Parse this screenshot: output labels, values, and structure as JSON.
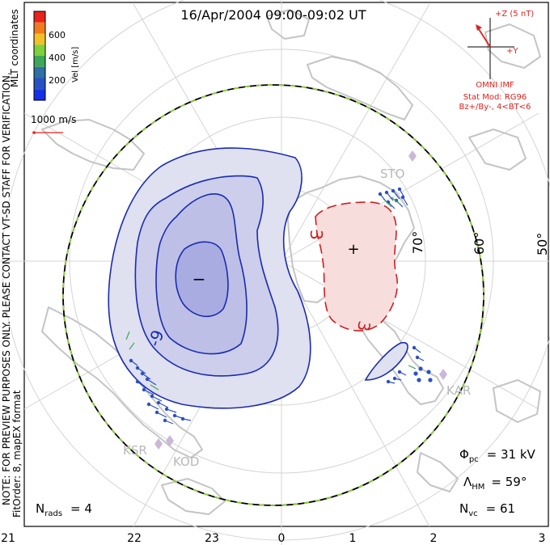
{
  "title": "16/Apr/2004 09:00-09:02 UT",
  "coordinates_label": "MLT coordinates",
  "colorbar": {
    "label": "Vel [m/s]",
    "ticks": [
      "600",
      "400",
      "200"
    ],
    "colors": [
      "#e8231b",
      "#f07a1e",
      "#f2c12a",
      "#7fd13b",
      "#3ea65a",
      "#2f6fa5",
      "#2b50c4",
      "#1530e6"
    ]
  },
  "vector_scale": "1000 m/s",
  "imf": {
    "z_label": "+Z (5 nT)",
    "y_label": "+Y",
    "source": "OMNI IMF",
    "stat_mod": "Stat Mod: RG96",
    "conditions": "Bz+/By-, 4<BT<6",
    "color": "#e0201c"
  },
  "latitude_labels": [
    "70°",
    "60°",
    "50°"
  ],
  "stations": [
    "STO",
    "KAR",
    "KSR",
    "KOD"
  ],
  "contour_labels": {
    "negative": "-9",
    "positive": "3"
  },
  "center_markers": {
    "min": "−",
    "max": "+"
  },
  "mlt_labels": [
    "21",
    "22",
    "23",
    "0",
    "1",
    "2",
    "3"
  ],
  "stats": {
    "phi_pc_sym": "Φ",
    "phi_pc_sub": "pc",
    "phi_pc_val": "= 31 kV",
    "lambda_sym": "Λ",
    "lambda_sub": "HM",
    "lambda_val": "= 59°",
    "nvc_sym": "N",
    "nvc_sub": "vc",
    "nvc_val": "= 61",
    "nrads_sym": "N",
    "nrads_sub": "rads",
    "nrads_val": "= 4"
  },
  "note_line1": "NOTE: FOR PREVIEW PURPOSES ONLY. PLEASE CONTACT VT-SD STAFF FOR VERIFICATION.",
  "note_line2": "FitOrder: 8, mapEX format",
  "colors": {
    "land": "#c8c8c8",
    "grid": "#cfcfcf",
    "negative_fill": "#dfe0f0",
    "negative_line": "#1a2bb0",
    "positive_fill": "#f7dedd",
    "positive_line": "#cc1f1f",
    "boundary_green": "#8fd13a"
  }
}
